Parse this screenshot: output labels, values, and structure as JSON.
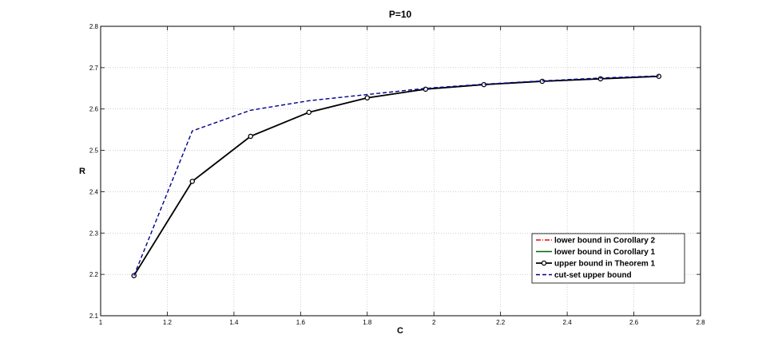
{
  "chart_data": {
    "type": "line",
    "title": "P=10",
    "xlabel": "C",
    "ylabel": "R",
    "xlim": [
      1,
      2.8
    ],
    "ylim": [
      2.1,
      2.8
    ],
    "xticks": [
      1,
      1.2,
      1.4,
      1.6,
      1.8,
      2,
      2.2,
      2.4,
      2.6,
      2.8
    ],
    "yticks": [
      2.1,
      2.2,
      2.3,
      2.4,
      2.5,
      2.6,
      2.7,
      2.8
    ],
    "xtick_labels": [
      "1",
      "1.2",
      "1.4",
      "1.6",
      "1.8",
      "2",
      "2.2",
      "2.4",
      "2.6",
      "2.8"
    ],
    "ytick_labels": [
      "2.1",
      "2.2",
      "2.3",
      "2.4",
      "2.5",
      "2.6",
      "2.7",
      "2.8"
    ],
    "grid": true,
    "legend_position": "bottom-right",
    "x": [
      1.1,
      1.275,
      1.45,
      1.625,
      1.8,
      1.975,
      2.15,
      2.325,
      2.5,
      2.675
    ],
    "series": [
      {
        "name": "lower bound in Corollary 2",
        "color": "#ff0000",
        "style": "dashdot",
        "marker": "none",
        "values": [
          2.197,
          2.425,
          2.534,
          2.592,
          2.627,
          2.648,
          2.659,
          2.667,
          2.673,
          2.679
        ]
      },
      {
        "name": "lower bound in Corollary 1",
        "color": "#006400",
        "style": "solid",
        "marker": "none",
        "values": [
          2.197,
          2.425,
          2.534,
          2.592,
          2.627,
          2.648,
          2.659,
          2.667,
          2.673,
          2.679
        ]
      },
      {
        "name": "upper bound in Theorem 1",
        "color": "#000000",
        "style": "solid",
        "marker": "circle",
        "values": [
          2.197,
          2.425,
          2.534,
          2.592,
          2.627,
          2.648,
          2.659,
          2.667,
          2.673,
          2.679
        ]
      },
      {
        "name": "cut-set upper bound",
        "color": "#00008b",
        "style": "dashed",
        "marker": "none",
        "values": [
          2.197,
          2.547,
          2.597,
          2.62,
          2.635,
          2.65,
          2.66,
          2.668,
          2.675,
          2.68
        ]
      }
    ]
  }
}
